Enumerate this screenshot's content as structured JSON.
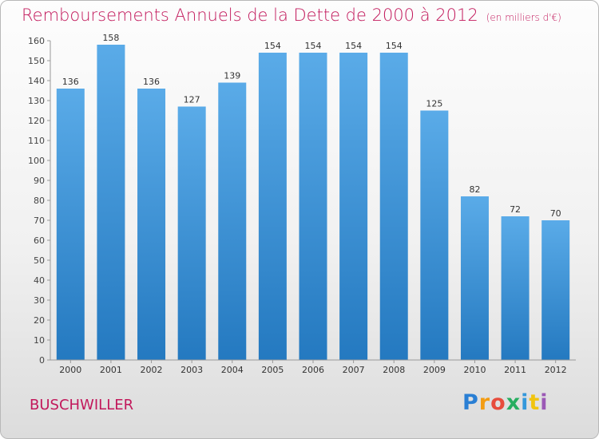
{
  "title": "Remboursements Annuels de la Dette de 2000 à 2012",
  "unit": "(en milliers d'€)",
  "city": "BUSCHWILLER",
  "logo": {
    "letters": [
      "P",
      "r",
      "o",
      "x",
      "i",
      "t",
      "i"
    ]
  },
  "colors": {
    "title": "#c2185b",
    "bar_light": "#5aabe8",
    "bar_dark": "#2479c0"
  },
  "chart_data": {
    "type": "bar",
    "categories": [
      "2000",
      "2001",
      "2002",
      "2003",
      "2004",
      "2005",
      "2006",
      "2007",
      "2008",
      "2009",
      "2010",
      "2011",
      "2012"
    ],
    "values": [
      136,
      158,
      136,
      127,
      139,
      154,
      154,
      154,
      154,
      125,
      82,
      72,
      70
    ],
    "ylim": [
      0,
      160
    ],
    "yticks": [
      0,
      10,
      20,
      30,
      40,
      50,
      60,
      70,
      80,
      90,
      100,
      110,
      120,
      130,
      140,
      150,
      160
    ],
    "grid": false,
    "data_labels": true
  }
}
